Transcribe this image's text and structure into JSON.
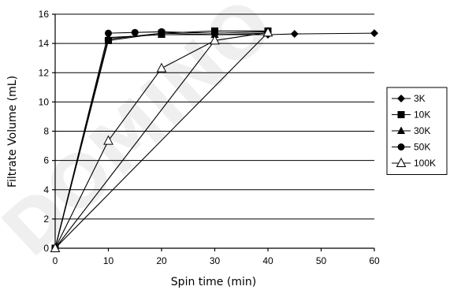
{
  "watermark_text": "DOMINO",
  "chart_data": {
    "type": "line",
    "title": "",
    "xlabel": "Spin time (min)",
    "ylabel": "Filtrate Volume (mL)",
    "xlim": [
      0,
      60
    ],
    "ylim": [
      0,
      16
    ],
    "xticks": [
      0,
      10,
      20,
      30,
      40,
      50,
      60
    ],
    "yticks": [
      0,
      2,
      4,
      6,
      8,
      10,
      12,
      14,
      16
    ],
    "grid": "horizontal",
    "legend_position": "right",
    "series": [
      {
        "name": "3K",
        "marker": "diamond",
        "points": [
          [
            0,
            0
          ],
          [
            10,
            14.3
          ],
          [
            20,
            14.7
          ],
          [
            30,
            14.6
          ],
          [
            40,
            14.6
          ],
          [
            45,
            14.65
          ],
          [
            60,
            14.7
          ]
        ]
      },
      {
        "name": "10K",
        "marker": "square",
        "points": [
          [
            0,
            0
          ],
          [
            10,
            14.2
          ],
          [
            20,
            14.7
          ],
          [
            30,
            14.85
          ],
          [
            40,
            14.85
          ]
        ]
      },
      {
        "name": "30K",
        "marker": "triangle",
        "points": [
          [
            0,
            0
          ],
          [
            10,
            14.4
          ],
          [
            20,
            14.6
          ],
          [
            30,
            14.6
          ],
          [
            40,
            14.7
          ]
        ]
      },
      {
        "name": "50K",
        "marker": "circle",
        "points": [
          [
            0,
            0
          ],
          [
            10,
            14.7
          ],
          [
            15,
            14.75
          ],
          [
            20,
            14.8
          ],
          [
            30,
            14.7
          ],
          [
            40,
            14.8
          ]
        ]
      },
      {
        "name": "100K",
        "marker": "open-triangle",
        "points": [
          [
            0,
            0
          ],
          [
            10,
            7.35
          ],
          [
            20,
            12.3
          ],
          [
            30,
            14.2
          ],
          [
            40,
            14.75
          ],
          [
            0,
            0
          ],
          [
            30,
            14.2
          ]
        ]
      }
    ]
  }
}
